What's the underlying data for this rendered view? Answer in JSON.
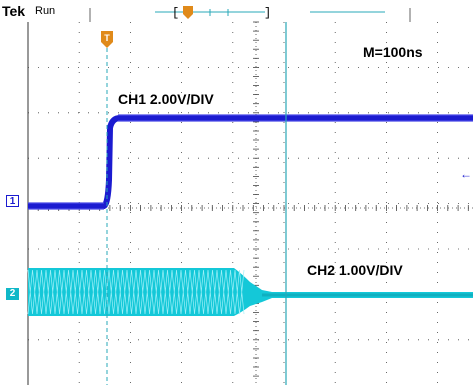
{
  "header": {
    "brand": "Tek",
    "status": "Run",
    "record_indicator": "[ ]",
    "trigger_position_glyph": "T"
  },
  "timebase_label": "M=100ns",
  "channels": [
    {
      "id": "1",
      "label": "CH1 2.00V/DIV",
      "color": "#1b1bd0"
    },
    {
      "id": "2",
      "label": "CH2 1.00V/DIV",
      "color": "#10c8d8"
    }
  ],
  "trigger_marker_glyph": "T",
  "trigger_level_glyph": "←",
  "colors": {
    "grid": "#444444",
    "ch1": "#1b1bd0",
    "ch2": "#14c8d8",
    "cursor": "#2aa8b8",
    "trigger": "#e08a1a"
  }
}
